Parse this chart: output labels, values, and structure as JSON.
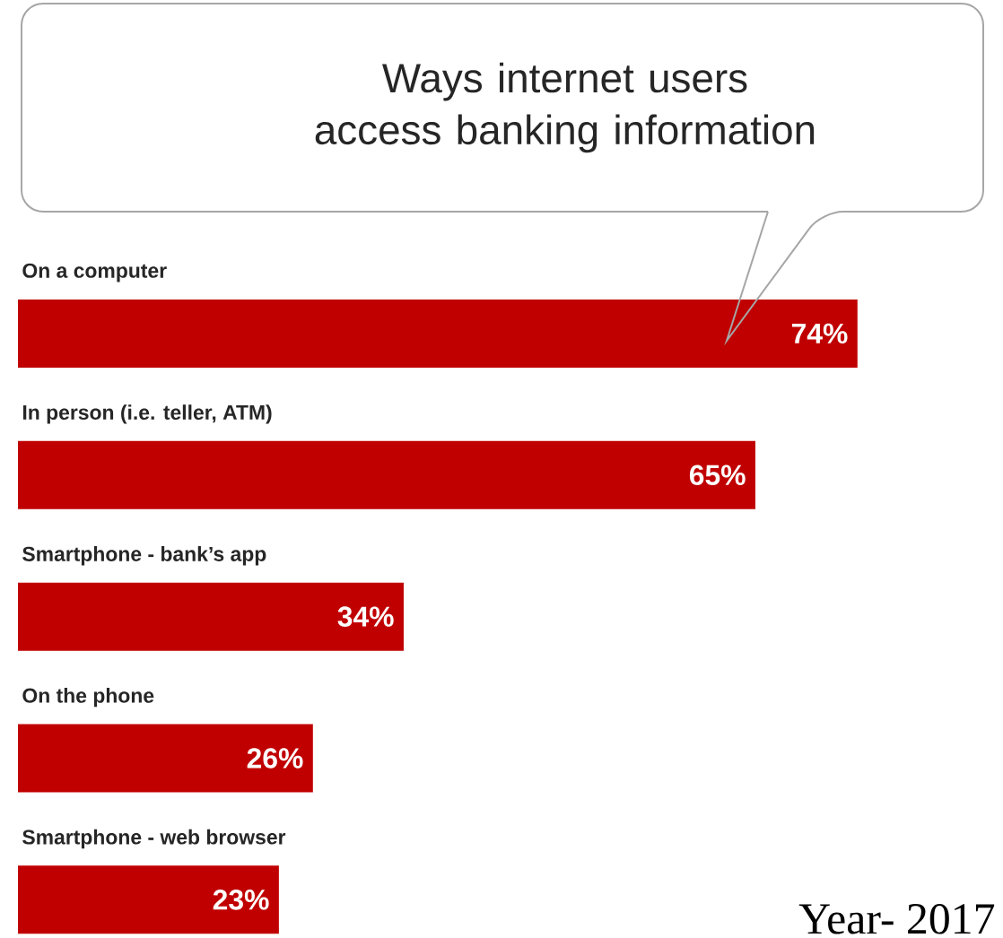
{
  "chart_data": {
    "type": "bar",
    "orientation": "horizontal",
    "title": "Ways internet users access banking information",
    "categories": [
      "On a computer",
      "In person (i.e. teller, ATM)",
      "Smartphone - bank’s app",
      "On the phone",
      "Smartphone - web browser"
    ],
    "values": [
      74,
      65,
      34,
      26,
      23
    ],
    "value_labels": [
      "74%",
      "65%",
      "34%",
      "26%",
      "23%"
    ],
    "color": "#c00000",
    "annotations": [
      "Year- 2017"
    ]
  }
}
